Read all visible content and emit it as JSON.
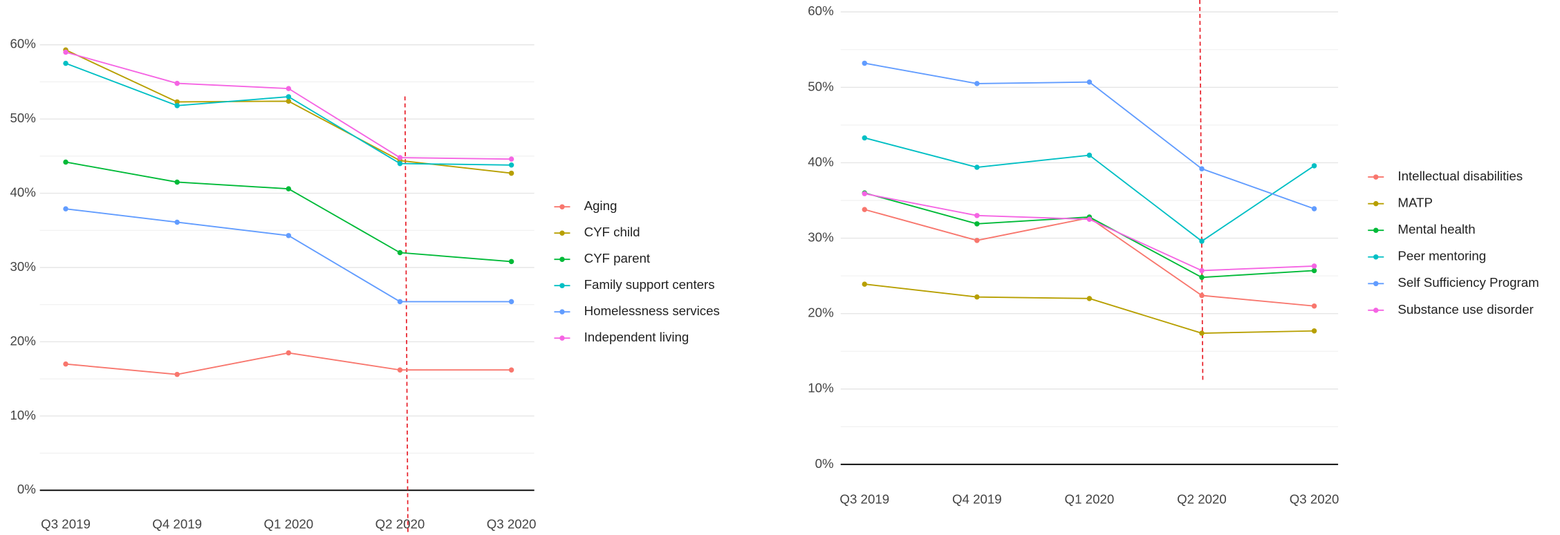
{
  "chart_data": [
    {
      "type": "line",
      "categories": [
        "Q3 2019",
        "Q4 2019",
        "Q1 2020",
        "Q2 2020",
        "Q3 2020"
      ],
      "ylim": [
        0,
        60
      ],
      "yticks": [
        {
          "value": 0,
          "label": "0%"
        },
        {
          "value": 10,
          "label": "10%"
        },
        {
          "value": 20,
          "label": "20%"
        },
        {
          "value": 30,
          "label": "30%"
        },
        {
          "value": 40,
          "label": "40%"
        },
        {
          "value": 50,
          "label": "50%"
        },
        {
          "value": 60,
          "label": "60%"
        }
      ],
      "grid": true,
      "legend": "right",
      "series": [
        {
          "name": "Aging",
          "color": "#F8766D",
          "values": [
            17.0,
            15.6,
            18.5,
            16.2,
            16.2
          ]
        },
        {
          "name": "CYF child",
          "color": "#B79F00",
          "values": [
            59.3,
            52.3,
            52.4,
            44.4,
            42.7
          ]
        },
        {
          "name": "CYF parent",
          "color": "#00BA38",
          "values": [
            44.2,
            41.5,
            40.6,
            32.0,
            30.8
          ]
        },
        {
          "name": "Family support centers",
          "color": "#00BFC4",
          "values": [
            57.5,
            51.8,
            53.0,
            44.0,
            43.8
          ]
        },
        {
          "name": "Homelessness services",
          "color": "#619CFF",
          "values": [
            37.9,
            36.1,
            34.3,
            25.4,
            25.4
          ]
        },
        {
          "name": "Independent living",
          "color": "#F564E3",
          "values": [
            59.0,
            54.8,
            54.1,
            44.8,
            44.6
          ]
        }
      ]
    },
    {
      "type": "line",
      "categories": [
        "Q3 2019",
        "Q4 2019",
        "Q1 2020",
        "Q2 2020",
        "Q3 2020"
      ],
      "ylim": [
        0,
        60
      ],
      "yticks": [
        {
          "value": 0,
          "label": "0%"
        },
        {
          "value": 10,
          "label": "10%"
        },
        {
          "value": 20,
          "label": "20%"
        },
        {
          "value": 30,
          "label": "30%"
        },
        {
          "value": 40,
          "label": "40%"
        },
        {
          "value": 50,
          "label": "50%"
        },
        {
          "value": 60,
          "label": "60%"
        }
      ],
      "grid": true,
      "legend": "right",
      "series": [
        {
          "name": "Intellectual disabilities",
          "color": "#F8766D",
          "values": [
            33.8,
            29.7,
            32.7,
            22.4,
            21.0
          ]
        },
        {
          "name": "MATP",
          "color": "#B79F00",
          "values": [
            23.9,
            22.2,
            22.0,
            17.4,
            17.7
          ]
        },
        {
          "name": "Mental health",
          "color": "#00BA38",
          "values": [
            36.0,
            31.9,
            32.8,
            24.8,
            25.7
          ]
        },
        {
          "name": "Peer mentoring",
          "color": "#00BFC4",
          "values": [
            43.3,
            39.4,
            41.0,
            29.6,
            39.6
          ]
        },
        {
          "name": "Self Sufficiency Program",
          "color": "#619CFF",
          "values": [
            53.2,
            50.5,
            50.7,
            39.2,
            33.9
          ]
        },
        {
          "name": "Substance use disorder",
          "color": "#F564E3",
          "values": [
            35.9,
            33.0,
            32.5,
            25.7,
            26.3
          ]
        }
      ]
    }
  ]
}
